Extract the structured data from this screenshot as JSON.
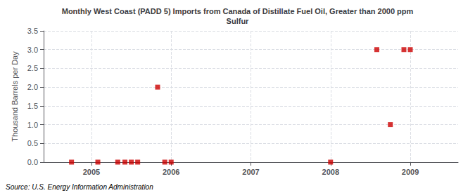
{
  "chart_data": {
    "type": "scatter",
    "title": "Monthly West Coast (PADD 5) Imports from Canada of Distillate Fuel Oil, Greater than 2000 ppm\nSulfur",
    "ylabel": "Thousand Barrels per Day",
    "source": "Source: U.S. Energy Information Administration",
    "x": [
      2004.75,
      2005.08,
      2005.33,
      2005.42,
      2005.5,
      2005.58,
      2005.83,
      2005.92,
      2006.0,
      2008.0,
      2008.58,
      2008.75,
      2008.92,
      2009.0
    ],
    "values": [
      0.0,
      0.0,
      0.0,
      0.0,
      0.0,
      0.0,
      2.0,
      0.0,
      0.0,
      0.0,
      3.0,
      1.0,
      3.0,
      3.0
    ],
    "color": "#cc0000",
    "marker": "square",
    "xlim": [
      2004.4,
      2009.6
    ],
    "xticks": [
      2005,
      2006,
      2007,
      2008,
      2009
    ],
    "ylim": [
      0,
      3.5
    ],
    "yticks": [
      {
        "value": 0.0,
        "label": "0.0"
      },
      {
        "value": 0.5,
        "label": "0.5"
      },
      {
        "value": 1.0,
        "label": "1.0"
      },
      {
        "value": 1.5,
        "label": "1.5"
      },
      {
        "value": 2.0,
        "label": "2.0"
      },
      {
        "value": 2.5,
        "label": "2.5"
      },
      {
        "value": 3.0,
        "label": "3.0"
      },
      {
        "value": 3.5,
        "label": "3.5"
      }
    ],
    "grid": true
  }
}
